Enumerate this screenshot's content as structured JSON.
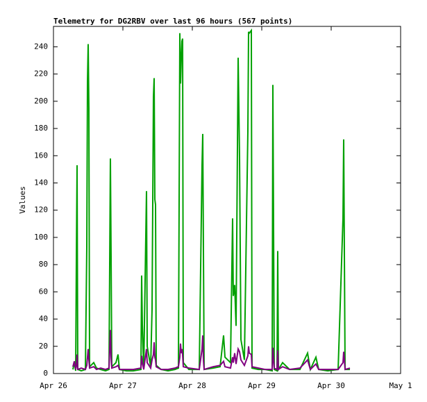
{
  "chart_data": {
    "type": "line",
    "title": "Telemetry for DG2RBV over last 96 hours (567 points)",
    "y_label": "Values",
    "x": [
      0.28,
      0.3,
      0.32,
      0.33,
      0.34,
      0.35,
      0.4,
      0.46,
      0.48,
      0.49,
      0.5,
      0.51,
      0.52,
      0.58,
      0.62,
      0.68,
      0.75,
      0.8,
      0.82,
      0.83,
      0.84,
      0.9,
      0.93,
      0.95,
      1.05,
      1.15,
      1.26,
      1.27,
      1.28,
      1.3,
      1.34,
      1.35,
      1.4,
      1.42,
      1.44,
      1.45,
      1.46,
      1.47,
      1.48,
      1.55,
      1.65,
      1.75,
      1.8,
      1.82,
      1.83,
      1.84,
      1.85,
      1.86,
      1.87,
      1.95,
      2.1,
      2.14,
      2.15,
      2.16,
      2.17,
      2.3,
      2.4,
      2.45,
      2.47,
      2.55,
      2.58,
      2.59,
      2.61,
      2.63,
      2.66,
      2.68,
      2.7,
      2.75,
      2.8,
      2.81,
      2.82,
      2.85,
      2.86,
      2.95,
      3.05,
      3.15,
      3.16,
      3.17,
      3.18,
      3.22,
      3.23,
      3.24,
      3.3,
      3.4,
      3.55,
      3.66,
      3.7,
      3.78,
      3.82,
      3.95,
      4.1,
      4.17,
      4.18,
      4.19,
      4.2,
      4.27
    ],
    "series": [
      {
        "color": "#00a000",
        "values": [
          3,
          8,
          2,
          84,
          153,
          3,
          2,
          3,
          93,
          214,
          242,
          195,
          5,
          8,
          4,
          3,
          2,
          3,
          158,
          86,
          5,
          8,
          14,
          3,
          2,
          2,
          3,
          72,
          36,
          3,
          134,
          20,
          5,
          47,
          203,
          217,
          128,
          124,
          6,
          3,
          2,
          3,
          4,
          250,
          213,
          230,
          244,
          246,
          8,
          3,
          3,
          153,
          176,
          90,
          3,
          4,
          5,
          28,
          12,
          8,
          114,
          57,
          65,
          35,
          232,
          159,
          25,
          10,
          178,
          251,
          250,
          252,
          4,
          3,
          3,
          2,
          212,
          107,
          3,
          2,
          90,
          3,
          8,
          3,
          3,
          15,
          3,
          12,
          3,
          2,
          3,
          114,
          172,
          88,
          3,
          3
        ]
      },
      {
        "color": "#800080",
        "values": [
          5,
          9,
          3,
          6,
          14,
          3,
          4,
          3,
          6,
          12,
          18,
          10,
          4,
          5,
          3,
          4,
          3,
          4,
          32,
          12,
          4,
          5,
          6,
          3,
          3,
          3,
          4,
          13,
          8,
          3,
          18,
          8,
          4,
          10,
          14,
          23,
          12,
          10,
          5,
          3,
          3,
          4,
          5,
          12,
          22,
          15,
          18,
          14,
          5,
          4,
          3,
          18,
          28,
          10,
          3,
          5,
          6,
          9,
          5,
          4,
          12,
          8,
          15,
          7,
          18,
          16,
          10,
          6,
          13,
          20,
          15,
          14,
          5,
          4,
          3,
          3,
          19,
          10,
          4,
          3,
          17,
          3,
          5,
          3,
          4,
          10,
          3,
          7,
          3,
          3,
          3,
          8,
          16,
          10,
          3,
          4
        ]
      }
    ],
    "xlim": [
      0,
      5
    ],
    "xticks": [
      {
        "value": 0,
        "label": "Apr 26"
      },
      {
        "value": 1,
        "label": "Apr 27"
      },
      {
        "value": 2,
        "label": "Apr 28"
      },
      {
        "value": 3,
        "label": "Apr 29"
      },
      {
        "value": 4,
        "label": "Apr 30"
      },
      {
        "value": 5,
        "label": "May 1"
      }
    ],
    "ylim": [
      0,
      255
    ],
    "yticks": [
      0,
      20,
      40,
      60,
      80,
      100,
      120,
      140,
      160,
      180,
      200,
      220,
      240
    ],
    "grid": false
  }
}
